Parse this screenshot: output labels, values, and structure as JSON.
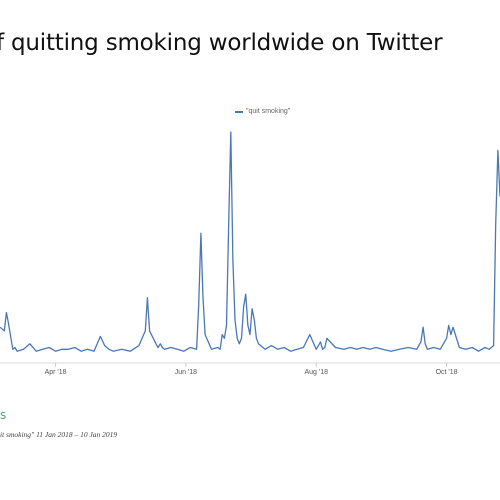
{
  "chart_data": {
    "type": "line",
    "title": "f quitting smoking worldwide on Twitter",
    "xlabel": "",
    "ylabel": "",
    "x_tick_labels": [
      "Apr '18",
      "Jun '18",
      "Aug '18",
      "Oct '18"
    ],
    "series": [
      {
        "name": "\"quit smoking\"",
        "color": "#4a78b5",
        "x": [
          "2018-03-06",
          "2018-03-08",
          "2018-03-09",
          "2018-03-10",
          "2018-03-12",
          "2018-03-13",
          "2018-03-14",
          "2018-03-17",
          "2018-03-20",
          "2018-03-23",
          "2018-03-26",
          "2018-03-29",
          "2018-04-01",
          "2018-04-04",
          "2018-04-07",
          "2018-04-10",
          "2018-04-13",
          "2018-04-16",
          "2018-04-19",
          "2018-04-22",
          "2018-04-24",
          "2018-04-25",
          "2018-04-26",
          "2018-04-28",
          "2018-05-02",
          "2018-05-06",
          "2018-05-10",
          "2018-05-13",
          "2018-05-14",
          "2018-05-15",
          "2018-05-18",
          "2018-05-19",
          "2018-05-20",
          "2018-05-21",
          "2018-05-22",
          "2018-05-25",
          "2018-05-28",
          "2018-05-31",
          "2018-06-03",
          "2018-06-06",
          "2018-06-07",
          "2018-06-08",
          "2018-06-09",
          "2018-06-10",
          "2018-06-13",
          "2018-06-16",
          "2018-06-17",
          "2018-06-18",
          "2018-06-19",
          "2018-06-20",
          "2018-06-21",
          "2018-06-22",
          "2018-06-23",
          "2018-06-24",
          "2018-06-25",
          "2018-06-26",
          "2018-06-27",
          "2018-06-28",
          "2018-06-29",
          "2018-06-30",
          "2018-07-01",
          "2018-07-02",
          "2018-07-03",
          "2018-07-04",
          "2018-07-05",
          "2018-07-08",
          "2018-07-11",
          "2018-07-14",
          "2018-07-17",
          "2018-07-20",
          "2018-07-23",
          "2018-07-26",
          "2018-07-29",
          "2018-08-01",
          "2018-08-02",
          "2018-08-03",
          "2018-08-04",
          "2018-08-05",
          "2018-08-06",
          "2018-08-10",
          "2018-08-14",
          "2018-08-17",
          "2018-08-20",
          "2018-08-23",
          "2018-08-26",
          "2018-08-29",
          "2018-09-01",
          "2018-09-05",
          "2018-09-09",
          "2018-09-13",
          "2018-09-17",
          "2018-09-19",
          "2018-09-20",
          "2018-09-21",
          "2018-09-22",
          "2018-09-25",
          "2018-09-28",
          "2018-10-01",
          "2018-10-02",
          "2018-10-03",
          "2018-10-04",
          "2018-10-07",
          "2018-10-10",
          "2018-10-13",
          "2018-10-16",
          "2018-10-19",
          "2018-10-21",
          "2018-10-23",
          "2018-10-24",
          "2018-10-25",
          "2018-10-26"
        ],
        "y": [
          14,
          12,
          22,
          16,
          2,
          3,
          1,
          2,
          5,
          1,
          2,
          3,
          1,
          2,
          2,
          3,
          1,
          2,
          1,
          9,
          4,
          3,
          2,
          1,
          2,
          1,
          4,
          12,
          30,
          12,
          5,
          3,
          5,
          3,
          2,
          3,
          2,
          1,
          3,
          2,
          26,
          65,
          30,
          10,
          2,
          3,
          2,
          10,
          8,
          15,
          68,
          120,
          50,
          18,
          8,
          5,
          8,
          25,
          32,
          15,
          10,
          24,
          18,
          8,
          5,
          2,
          4,
          2,
          3,
          1,
          2,
          3,
          10,
          2,
          4,
          6,
          2,
          3,
          8,
          3,
          2,
          3,
          2,
          3,
          2,
          3,
          2,
          1,
          2,
          3,
          2,
          6,
          14,
          5,
          2,
          3,
          2,
          8,
          15,
          10,
          14,
          3,
          2,
          3,
          1,
          3,
          2,
          4,
          70,
          110,
          85
        ]
      }
    ]
  },
  "stat_value": "s",
  "query_caption": "it smoking\" 11 Jan 2018 – 10 Jan 2019"
}
